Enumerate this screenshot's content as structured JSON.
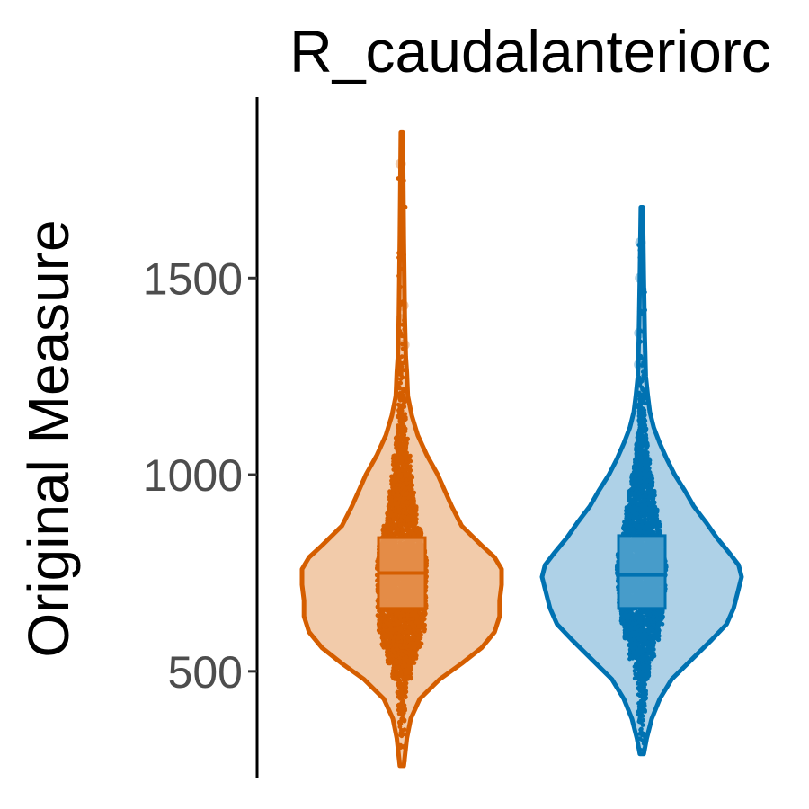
{
  "chart_data": {
    "type": "violin",
    "title": "R_caudalanteriorc",
    "xlabel": "",
    "ylabel": "Original Measure",
    "ylim": [
      230,
      1960
    ],
    "yticks": [
      500,
      1000,
      1500
    ],
    "grid": false,
    "legend": "none",
    "series": [
      {
        "color": "#D55E00",
        "fill": "#F2CBAA",
        "box_fill": "#E5904D",
        "min": 260,
        "max": 1870,
        "q1": 660,
        "median": 750,
        "q3": 840,
        "density": [
          [
            260,
            2
          ],
          [
            330,
            5
          ],
          [
            380,
            9
          ],
          [
            430,
            18
          ],
          [
            480,
            38
          ],
          [
            520,
            60
          ],
          [
            560,
            80
          ],
          [
            600,
            93
          ],
          [
            640,
            98
          ],
          [
            680,
            98
          ],
          [
            720,
            100
          ],
          [
            760,
            100
          ],
          [
            790,
            93
          ],
          [
            820,
            80
          ],
          [
            870,
            60
          ],
          [
            920,
            50
          ],
          [
            960,
            43
          ],
          [
            1000,
            36
          ],
          [
            1050,
            25
          ],
          [
            1100,
            16
          ],
          [
            1150,
            10
          ],
          [
            1200,
            6
          ],
          [
            1260,
            5
          ],
          [
            1300,
            4
          ],
          [
            1400,
            3
          ],
          [
            1600,
            2
          ],
          [
            1870,
            1
          ]
        ],
        "outliers": [
          1395,
          1430,
          1330,
          1790
        ]
      },
      {
        "color": "#0072B2",
        "fill": "#AED1E7",
        "box_fill": "#4D9FCC",
        "min": 290,
        "max": 1680,
        "q1": 660,
        "median": 745,
        "q3": 845,
        "density": [
          [
            290,
            2
          ],
          [
            330,
            5
          ],
          [
            380,
            10
          ],
          [
            430,
            18
          ],
          [
            480,
            30
          ],
          [
            530,
            50
          ],
          [
            580,
            70
          ],
          [
            620,
            85
          ],
          [
            660,
            92
          ],
          [
            700,
            96
          ],
          [
            740,
            100
          ],
          [
            770,
            97
          ],
          [
            800,
            88
          ],
          [
            840,
            75
          ],
          [
            880,
            64
          ],
          [
            920,
            52
          ],
          [
            960,
            43
          ],
          [
            1000,
            33
          ],
          [
            1040,
            25
          ],
          [
            1080,
            18
          ],
          [
            1120,
            12
          ],
          [
            1160,
            8
          ],
          [
            1200,
            6
          ],
          [
            1250,
            4
          ],
          [
            1350,
            3
          ],
          [
            1500,
            2
          ],
          [
            1680,
            1
          ]
        ],
        "outliers": [
          1590,
          1500,
          1360,
          1280
        ]
      }
    ]
  }
}
